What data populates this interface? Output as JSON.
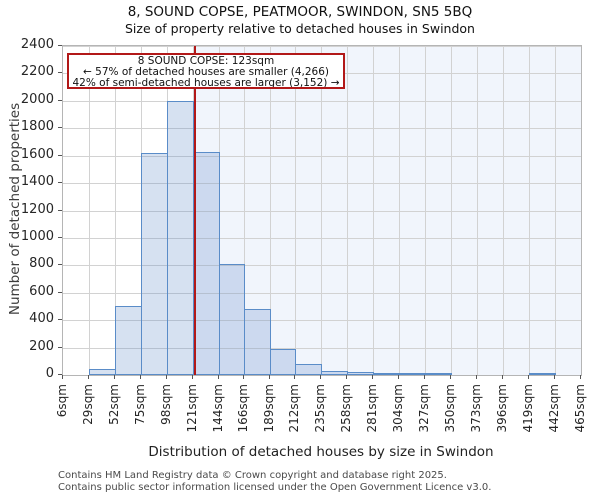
{
  "chart_data": {
    "type": "bar",
    "title": "8, SOUND COPSE, PEATMOOR, SWINDON, SN5 5BQ",
    "subtitle": "Size of property relative to detached houses in Swindon",
    "xlabel": "Distribution of detached houses by size in Swindon",
    "ylabel": "Number of detached properties",
    "ylim": [
      0,
      2400
    ],
    "y_ticks": [
      0,
      200,
      400,
      600,
      800,
      1000,
      1200,
      1400,
      1600,
      1800,
      2000,
      2200,
      2400
    ],
    "bin_edges_sqm": [
      6,
      29,
      52,
      75,
      98,
      121,
      144,
      166,
      189,
      212,
      235,
      258,
      281,
      304,
      327,
      350,
      373,
      396,
      419,
      442,
      465
    ],
    "x_tick_labels": [
      "6sqm",
      "29sqm",
      "52sqm",
      "75sqm",
      "98sqm",
      "121sqm",
      "144sqm",
      "166sqm",
      "189sqm",
      "212sqm",
      "235sqm",
      "258sqm",
      "281sqm",
      "304sqm",
      "327sqm",
      "350sqm",
      "373sqm",
      "396sqm",
      "419sqm",
      "442sqm",
      "465sqm"
    ],
    "values": [
      0,
      45,
      505,
      1620,
      2000,
      1630,
      810,
      480,
      190,
      80,
      30,
      20,
      10,
      5,
      5,
      0,
      0,
      0,
      5,
      0
    ],
    "grid": true,
    "legend_position": "none",
    "marker": {
      "value_sqm": 123,
      "color": "#b21818"
    },
    "colors": {
      "bar_fill": "rgba(105,143,205,0.27)",
      "bar_edge": "#5a8cc8",
      "shade_right_of_marker": "#f1f5fc",
      "gridline": "#d2d2d2",
      "spine": "#b5b5b5"
    }
  },
  "annotation": {
    "line1": "8 SOUND COPSE: 123sqm",
    "line2": "← 57% of detached houses are smaller (4,266)",
    "line3": "42% of semi-detached houses are larger (3,152) →",
    "border_color": "#b21818"
  },
  "footer": {
    "line1": "Contains HM Land Registry data © Crown copyright and database right 2025.",
    "line2": "Contains public sector information licensed under the Open Government Licence v3.0."
  }
}
